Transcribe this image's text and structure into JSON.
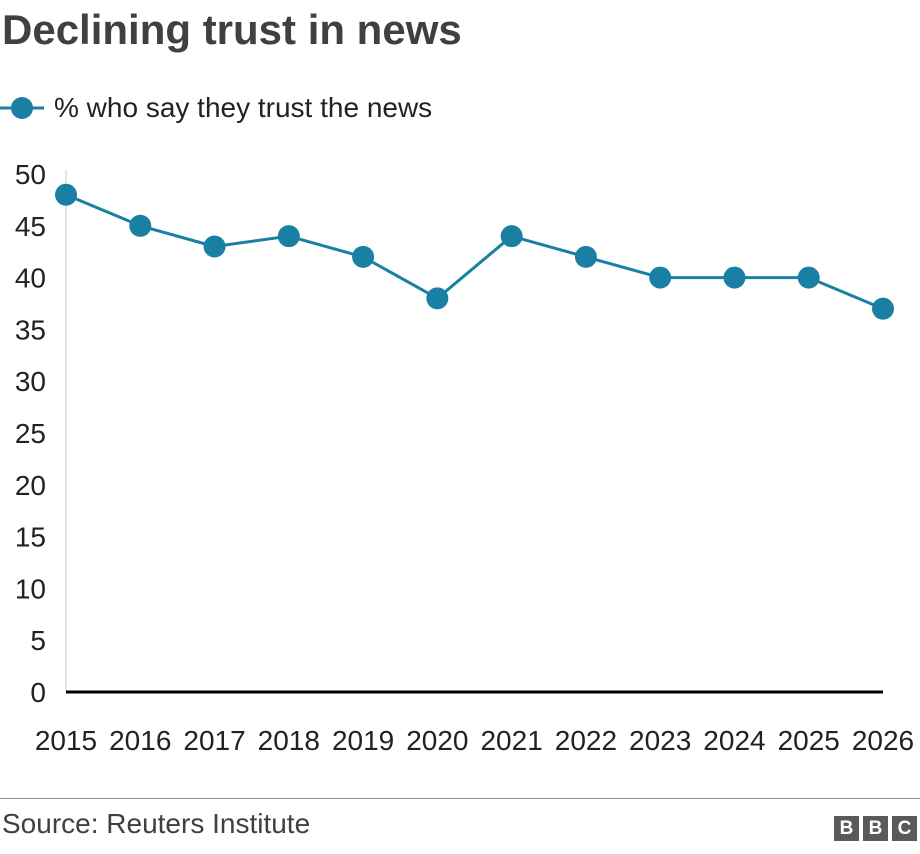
{
  "chart_data": {
    "type": "line",
    "title": "Declining trust in news",
    "xlabel": "",
    "ylabel": "",
    "categories": [
      "2015",
      "2016",
      "2017",
      "2018",
      "2019",
      "2020",
      "2021",
      "2022",
      "2023",
      "2024",
      "2025",
      "2026"
    ],
    "series": [
      {
        "name": "% who say they trust the news",
        "values": [
          48,
          45,
          43,
          44,
          42,
          38,
          44,
          42,
          40,
          40,
          40,
          37
        ],
        "color": "#1a80a3"
      }
    ],
    "ylim": [
      0,
      50
    ],
    "yticks": [
      "0",
      "5",
      "10",
      "15",
      "20",
      "25",
      "30",
      "35",
      "40",
      "45",
      "50"
    ],
    "grid": false,
    "legend_position": "top-left",
    "source": "Source: Reuters Institute"
  },
  "logo": {
    "letters": [
      "B",
      "B",
      "C"
    ]
  },
  "colors": {
    "series": "#1a80a3",
    "title": "#404040",
    "baseline": "#000000"
  }
}
